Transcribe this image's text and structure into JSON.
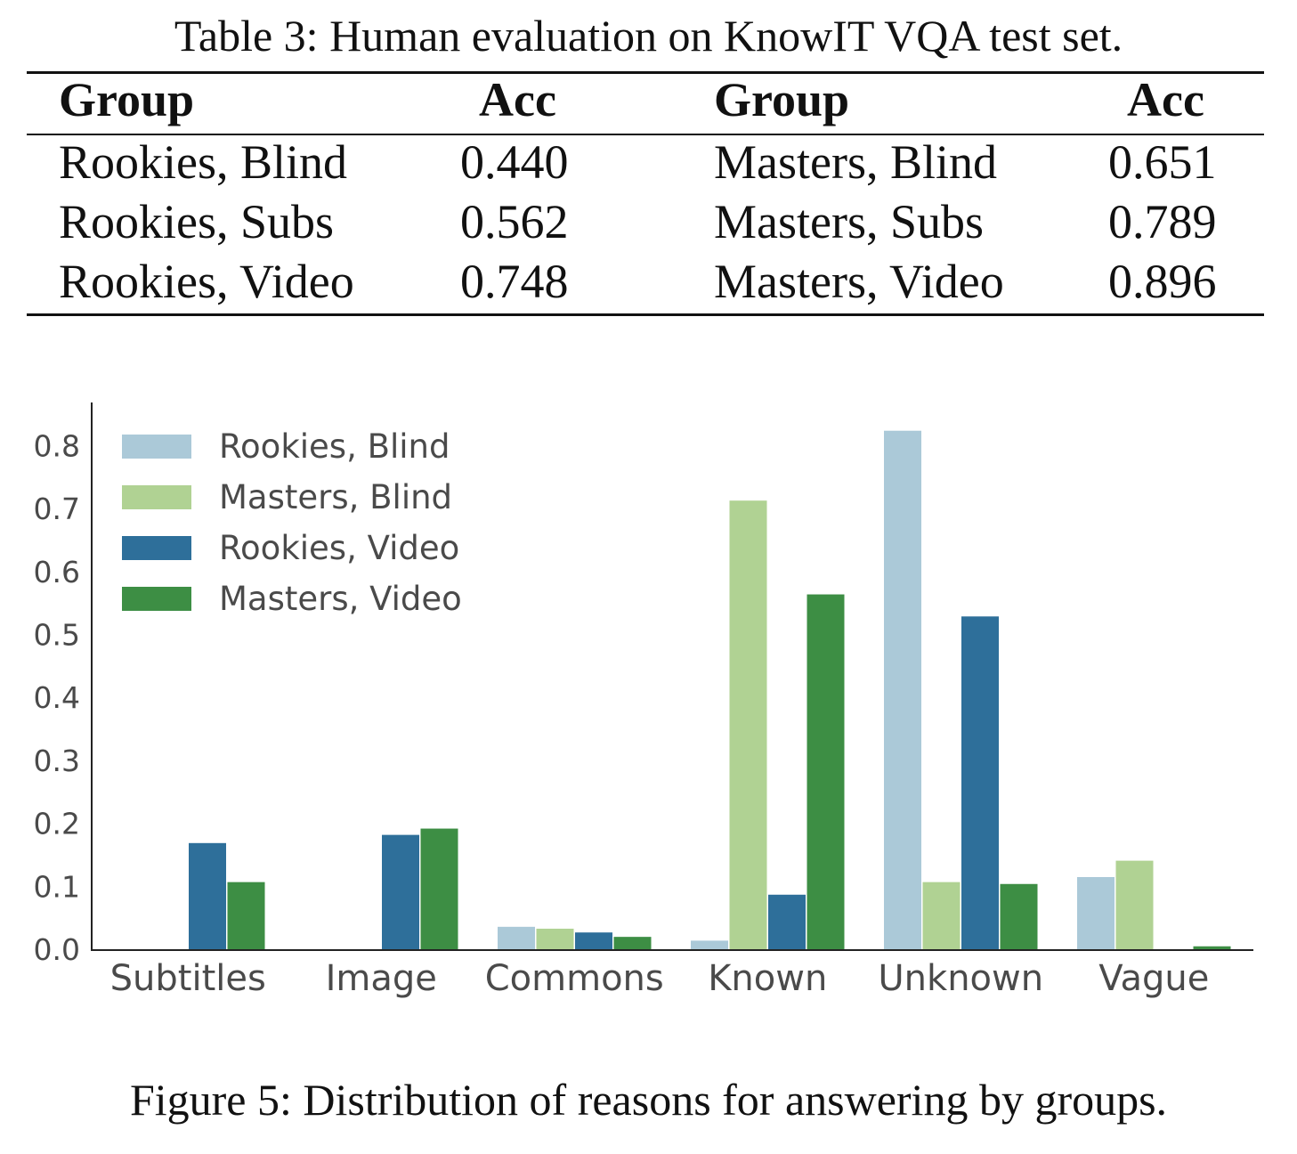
{
  "table": {
    "caption": "Table 3: Human evaluation on KnowIT VQA test set.",
    "headers": [
      "Group",
      "Acc",
      "Group",
      "Acc"
    ],
    "rows": [
      [
        "Rookies, Blind",
        "0.440",
        "Masters, Blind",
        "0.651"
      ],
      [
        "Rookies, Subs",
        "0.562",
        "Masters, Subs",
        "0.789"
      ],
      [
        "Rookies, Video",
        "0.748",
        "Masters, Video",
        "0.896"
      ]
    ]
  },
  "chart_data": {
    "type": "bar",
    "title": "",
    "xlabel": "",
    "ylabel": "",
    "categories": [
      "Subtitles",
      "Image",
      "Commons",
      "Known",
      "Unknown",
      "Vague"
    ],
    "ylim": [
      0,
      0.87
    ],
    "yticks": [
      "0.0",
      "0.1",
      "0.2",
      "0.3",
      "0.4",
      "0.5",
      "0.6",
      "0.7",
      "0.8"
    ],
    "legend_position": "top-left",
    "grid": false,
    "series": [
      {
        "name": "Rookies, Blind",
        "color": "#abc9d8",
        "values": [
          0.0,
          0.0,
          0.037,
          0.015,
          0.825,
          0.116
        ]
      },
      {
        "name": "Masters, Blind",
        "color": "#b0d293",
        "values": [
          0.0,
          0.0,
          0.034,
          0.714,
          0.108,
          0.142
        ]
      },
      {
        "name": "Rookies, Video",
        "color": "#2e6f9a",
        "values": [
          0.17,
          0.183,
          0.028,
          0.088,
          0.53,
          0.0
        ]
      },
      {
        "name": "Masters, Video",
        "color": "#3d8e44",
        "values": [
          0.108,
          0.193,
          0.021,
          0.565,
          0.105,
          0.006
        ]
      }
    ]
  },
  "figure": {
    "caption": "Figure 5: Distribution of reasons for answering by groups."
  }
}
